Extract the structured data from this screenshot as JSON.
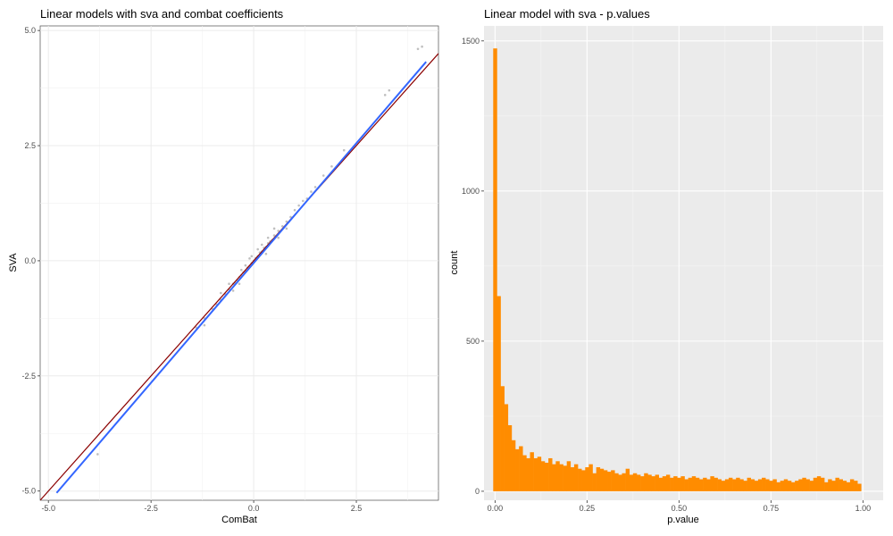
{
  "chart_data": [
    {
      "type": "scatter",
      "title": "Linear models with sva and combat coefficients",
      "xlabel": "ComBat",
      "ylabel": "SVA",
      "xlim": [
        -5.2,
        4.5
      ],
      "ylim": [
        -5.2,
        5.1
      ],
      "x_ticks": [
        -5.0,
        -2.5,
        0.0,
        2.5
      ],
      "y_ticks": [
        -5.0,
        -2.5,
        0.0,
        2.5,
        5.0
      ],
      "x_tick_labels": [
        "-5.0",
        "-2.5",
        "0.0",
        "2.5"
      ],
      "y_tick_labels": [
        "-5.0",
        "-2.5",
        "0.0",
        "2.5",
        "5.0"
      ],
      "grid": true,
      "lines": [
        {
          "name": "identity",
          "color": "#8b0000",
          "intercept": 0,
          "slope": 1
        },
        {
          "name": "fit",
          "color": "#3366ff",
          "x": [
            -4.8,
            4.2
          ],
          "y": [
            -5.04,
            4.32
          ]
        }
      ],
      "points": [
        [
          -3.8,
          -4.2
        ],
        [
          4.1,
          4.65
        ],
        [
          4.0,
          4.6
        ],
        [
          3.3,
          3.7
        ],
        [
          3.2,
          3.6
        ],
        [
          2.2,
          2.4
        ],
        [
          1.9,
          2.05
        ],
        [
          1.7,
          1.85
        ],
        [
          1.5,
          1.6
        ],
        [
          1.4,
          1.5
        ],
        [
          1.3,
          1.35
        ],
        [
          1.1,
          1.2
        ],
        [
          1.0,
          1.1
        ],
        [
          0.9,
          0.95
        ],
        [
          0.8,
          0.85
        ],
        [
          0.7,
          0.75
        ],
        [
          0.6,
          0.65
        ],
        [
          0.5,
          0.55
        ],
        [
          0.45,
          0.45
        ],
        [
          0.4,
          0.42
        ],
        [
          0.35,
          0.38
        ],
        [
          0.3,
          0.3
        ],
        [
          0.25,
          0.28
        ],
        [
          0.2,
          0.2
        ],
        [
          0.15,
          0.18
        ],
        [
          0.1,
          0.1
        ],
        [
          0.05,
          0.06
        ],
        [
          0.0,
          0.0
        ],
        [
          -0.05,
          -0.05
        ],
        [
          -0.1,
          -0.12
        ],
        [
          -0.15,
          -0.15
        ],
        [
          -0.2,
          -0.22
        ],
        [
          -0.25,
          -0.25
        ],
        [
          -0.3,
          -0.32
        ],
        [
          -0.35,
          -0.36
        ],
        [
          -0.4,
          -0.42
        ],
        [
          -0.45,
          -0.48
        ],
        [
          -0.5,
          -0.5
        ],
        [
          -0.6,
          -0.62
        ],
        [
          -0.7,
          -0.72
        ],
        [
          -0.8,
          -0.85
        ],
        [
          -0.9,
          -0.95
        ],
        [
          -1.0,
          -1.05
        ],
        [
          -1.2,
          -1.25
        ],
        [
          -1.4,
          -1.45
        ],
        [
          -1.2,
          -1.4
        ],
        [
          -0.2,
          -0.1
        ],
        [
          0.2,
          0.35
        ],
        [
          0.3,
          0.15
        ],
        [
          -0.3,
          -0.2
        ],
        [
          0.6,
          0.5
        ],
        [
          -0.6,
          -0.5
        ],
        [
          0.1,
          0.25
        ],
        [
          -0.1,
          0.05
        ],
        [
          0.5,
          0.7
        ],
        [
          -0.5,
          -0.65
        ],
        [
          0.35,
          0.5
        ],
        [
          -0.35,
          -0.5
        ],
        [
          0.8,
          0.7
        ],
        [
          -0.8,
          -0.7
        ],
        [
          1.2,
          1.3
        ],
        [
          -0.05,
          0.1
        ]
      ]
    },
    {
      "type": "bar",
      "title": "Linear model with sva - p.values",
      "xlabel": "p.value",
      "ylabel": "count",
      "xlim": [
        -0.03,
        1.055
      ],
      "ylim": [
        -30,
        1550
      ],
      "x_ticks": [
        0.0,
        0.25,
        0.5,
        0.75,
        1.0
      ],
      "y_ticks": [
        0,
        500,
        1000,
        1500
      ],
      "x_tick_labels": [
        "0.00",
        "0.25",
        "0.50",
        "0.75",
        "1.00"
      ],
      "y_tick_labels": [
        "0",
        "500",
        "1000",
        "1500"
      ],
      "grid": true,
      "bar_color": "#ff8c00",
      "bin_start": -0.005,
      "bin_width": 0.01,
      "counts": [
        1475,
        650,
        350,
        290,
        220,
        170,
        140,
        150,
        120,
        110,
        130,
        110,
        115,
        100,
        95,
        110,
        90,
        100,
        90,
        85,
        100,
        80,
        90,
        75,
        70,
        80,
        90,
        60,
        80,
        75,
        70,
        65,
        70,
        60,
        55,
        60,
        75,
        55,
        60,
        55,
        50,
        60,
        55,
        50,
        55,
        45,
        50,
        55,
        45,
        50,
        45,
        50,
        40,
        45,
        50,
        45,
        40,
        45,
        40,
        50,
        45,
        40,
        35,
        40,
        45,
        40,
        45,
        40,
        35,
        45,
        40,
        35,
        40,
        45,
        40,
        35,
        40,
        30,
        35,
        40,
        35,
        30,
        35,
        40,
        45,
        40,
        35,
        45,
        50,
        45,
        30,
        40,
        35,
        45,
        40,
        35,
        30,
        40,
        35,
        25
      ]
    }
  ]
}
